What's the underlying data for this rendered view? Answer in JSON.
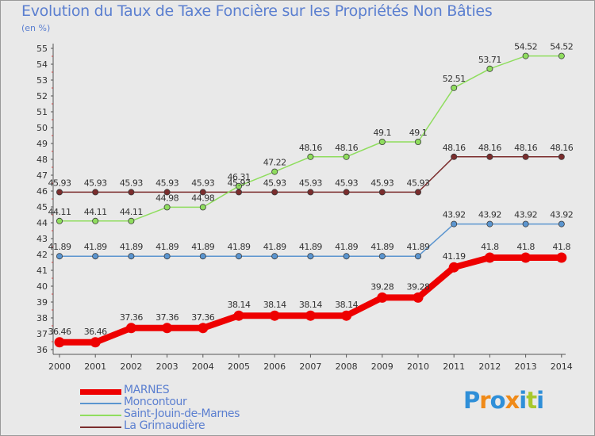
{
  "title": "Evolution du Taux de Taxe Foncière sur les Propriétés Non Bâties",
  "unit_label": "(en %)",
  "logo": {
    "text": "Proxiti",
    "letters": [
      {
        "ch": "P",
        "color": "#2f8fd8"
      },
      {
        "ch": "r",
        "color": "#f08a18"
      },
      {
        "ch": "o",
        "color": "#2f8fd8"
      },
      {
        "ch": "x",
        "color": "#f08a18"
      },
      {
        "ch": "i",
        "color": "#2f8fd8"
      },
      {
        "ch": "t",
        "color": "#a8c82c"
      },
      {
        "ch": "i",
        "color": "#2f8fd8"
      }
    ]
  },
  "chart_data": {
    "type": "line",
    "title": "Evolution du Taux de Taxe Foncière sur les Propriétés Non Bâties",
    "ylabel": "(en %)",
    "xlabel": "",
    "ylim": [
      36,
      55
    ],
    "yticks": [
      "36",
      "37",
      "38",
      "39",
      "40",
      "41",
      "42",
      "43",
      "44",
      "45",
      "46",
      "47",
      "48",
      "49",
      "50",
      "51",
      "52",
      "53",
      "54",
      "55"
    ],
    "x": [
      "2000",
      "2001",
      "2002",
      "2003",
      "2004",
      "2005",
      "2006",
      "2007",
      "2008",
      "2009",
      "2010",
      "2011",
      "2012",
      "2013",
      "2014"
    ],
    "legend_position": "bottom-left",
    "series": [
      {
        "name": "MARNES",
        "color": "#ee0000",
        "values": [
          36.46,
          36.46,
          37.36,
          37.36,
          37.36,
          38.14,
          38.14,
          38.14,
          38.14,
          39.28,
          39.28,
          41.19,
          41.8,
          41.8,
          41.8
        ],
        "labels": [
          "36.46",
          "36.46",
          "37.36",
          "37.36",
          "37.36",
          "38.14",
          "38.14",
          "38.14",
          "38.14",
          "39.28",
          "39.28",
          "41.19",
          "41.8",
          "41.8",
          "41.8"
        ]
      },
      {
        "name": "Moncontour",
        "color": "#5b95cf",
        "values": [
          41.89,
          41.89,
          41.89,
          41.89,
          41.89,
          41.89,
          41.89,
          41.89,
          41.89,
          41.89,
          41.89,
          43.92,
          43.92,
          43.92,
          43.92
        ],
        "labels": [
          "41.89",
          "41.89",
          "41.89",
          "41.89",
          "41.89",
          "41.89",
          "41.89",
          "41.89",
          "41.89",
          "41.89",
          "41.89",
          "43.92",
          "43.92",
          "43.92",
          "43.92"
        ]
      },
      {
        "name": "Saint-Jouin-de-Marnes",
        "color": "#8fdd5e",
        "values": [
          44.11,
          44.11,
          44.11,
          44.98,
          44.98,
          46.31,
          47.22,
          48.16,
          48.16,
          49.1,
          49.1,
          52.51,
          53.71,
          54.52,
          54.52
        ],
        "labels": [
          "44.11",
          "44.11",
          "44.11",
          "44.98",
          "44.98",
          "46.31",
          "47.22",
          "48.16",
          "48.16",
          "49.1",
          "49.1",
          "52.51",
          "53.71",
          "54.52",
          "54.52"
        ]
      },
      {
        "name": "La Grimaudière",
        "color": "#7b2d2d",
        "values": [
          45.93,
          45.93,
          45.93,
          45.93,
          45.93,
          45.93,
          45.93,
          45.93,
          45.93,
          45.93,
          45.93,
          48.16,
          48.16,
          48.16,
          48.16
        ],
        "labels": [
          "45.93",
          "45.93",
          "45.93",
          "45.93",
          "45.93",
          "45.93",
          "45.93",
          "45.93",
          "45.93",
          "45.93",
          "45.93",
          "48.16",
          "48.16",
          "48.16",
          "48.16"
        ]
      }
    ]
  }
}
